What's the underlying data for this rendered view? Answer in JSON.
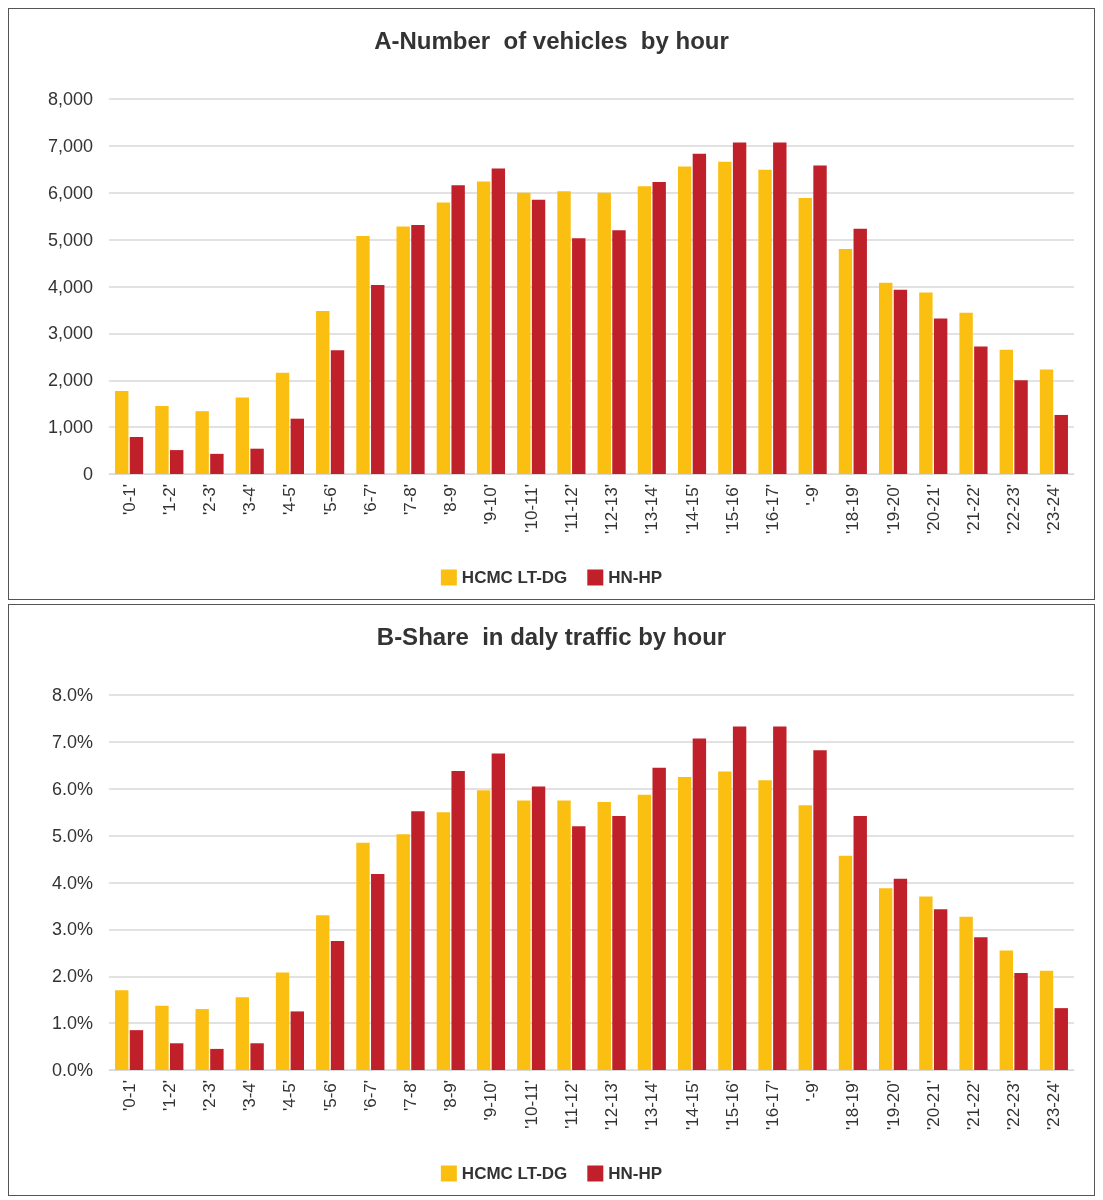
{
  "chart_data": [
    {
      "type": "bar",
      "title": "A-Number  of vehicles  by hour",
      "categories": [
        "'0-1'",
        "'1-2'",
        "'2-3'",
        "'3-4'",
        "'4-5'",
        "'5-6'",
        "'6-7'",
        "'7-8'",
        "'8-9'",
        "'9-10'",
        "'10-11'",
        "'11-12'",
        "'12-13'",
        "'13-14'",
        "'14-15'",
        "'15-16'",
        "'16-17'",
        "'-9'",
        "'18-19'",
        "'19-20'",
        "'20-21'",
        "'21-22'",
        "'22-23'",
        "'23-24'"
      ],
      "series": [
        {
          "name": "HCMC LT-DG",
          "color": "#fbbf12",
          "values": [
            1770,
            1450,
            1340,
            1630,
            2160,
            3480,
            5080,
            5280,
            5790,
            6240,
            6000,
            6030,
            6000,
            6140,
            6560,
            6660,
            6490,
            5890,
            4800,
            4080,
            3870,
            3440,
            2650,
            2230
          ]
        },
        {
          "name": "HN-HP",
          "color": "#c0202a",
          "values": [
            790,
            510,
            430,
            540,
            1180,
            2640,
            4030,
            5310,
            6160,
            6520,
            5850,
            5030,
            5200,
            6230,
            6830,
            7070,
            7070,
            6580,
            5230,
            3930,
            3320,
            2720,
            2000,
            1260
          ]
        }
      ],
      "ylim": [
        0,
        8000
      ],
      "yticks": [
        0,
        {
          "value": 1000,
          "label": "1,000"
        },
        {
          "value": 2000,
          "label": "2,000"
        },
        {
          "value": 3000,
          "label": "3,000"
        },
        {
          "value": 4000,
          "label": "4,000"
        },
        {
          "value": 5000,
          "label": "5,000"
        },
        {
          "value": 6000,
          "label": "6,000"
        },
        {
          "value": 7000,
          "label": "7,000"
        },
        {
          "value": 8000,
          "label": "8,000"
        }
      ],
      "grid": "y",
      "legend": "bottom"
    },
    {
      "type": "bar",
      "title": "B-Share  in daly traffic by hour",
      "categories": [
        "'0-1'",
        "'1-2'",
        "'2-3'",
        "'3-4'",
        "'4-5'",
        "'5-6'",
        "'6-7'",
        "'7-8'",
        "'8-9'",
        "'9-10'",
        "'10-11'",
        "'11-12'",
        "'12-13'",
        "'13-14'",
        "'14-15'",
        "'15-16'",
        "'16-17'",
        "'-9'",
        "'18-19'",
        "'19-20'",
        "'20-21'",
        "'21-22'",
        "'22-23'",
        "'23-24'"
      ],
      "series": [
        {
          "name": "HCMC LT-DG",
          "color": "#fbbf12",
          "values": [
            1.7,
            1.37,
            1.3,
            1.55,
            2.08,
            3.3,
            4.85,
            5.03,
            5.5,
            5.97,
            5.75,
            5.75,
            5.72,
            5.87,
            6.25,
            6.37,
            6.18,
            5.65,
            4.57,
            3.88,
            3.7,
            3.27,
            2.55,
            2.12
          ]
        },
        {
          "name": "HN-HP",
          "color": "#c0202a",
          "values": [
            0.85,
            0.57,
            0.45,
            0.57,
            1.25,
            2.75,
            4.18,
            5.52,
            6.38,
            6.75,
            6.05,
            5.2,
            5.42,
            6.45,
            7.07,
            7.33,
            7.33,
            6.82,
            5.42,
            4.08,
            3.43,
            2.83,
            2.07,
            1.32
          ]
        }
      ],
      "ylim": [
        0,
        8
      ],
      "yticks": [
        {
          "value": 0,
          "label": "0.0%"
        },
        {
          "value": 1,
          "label": "1.0%"
        },
        {
          "value": 2,
          "label": "2.0%"
        },
        {
          "value": 3,
          "label": "3.0%"
        },
        {
          "value": 4,
          "label": "4.0%"
        },
        {
          "value": 5,
          "label": "5.0%"
        },
        {
          "value": 6,
          "label": "6.0%"
        },
        {
          "value": 7,
          "label": "7.0%"
        },
        {
          "value": 8,
          "label": "8.0%"
        }
      ],
      "grid": "y",
      "legend": "bottom"
    }
  ]
}
